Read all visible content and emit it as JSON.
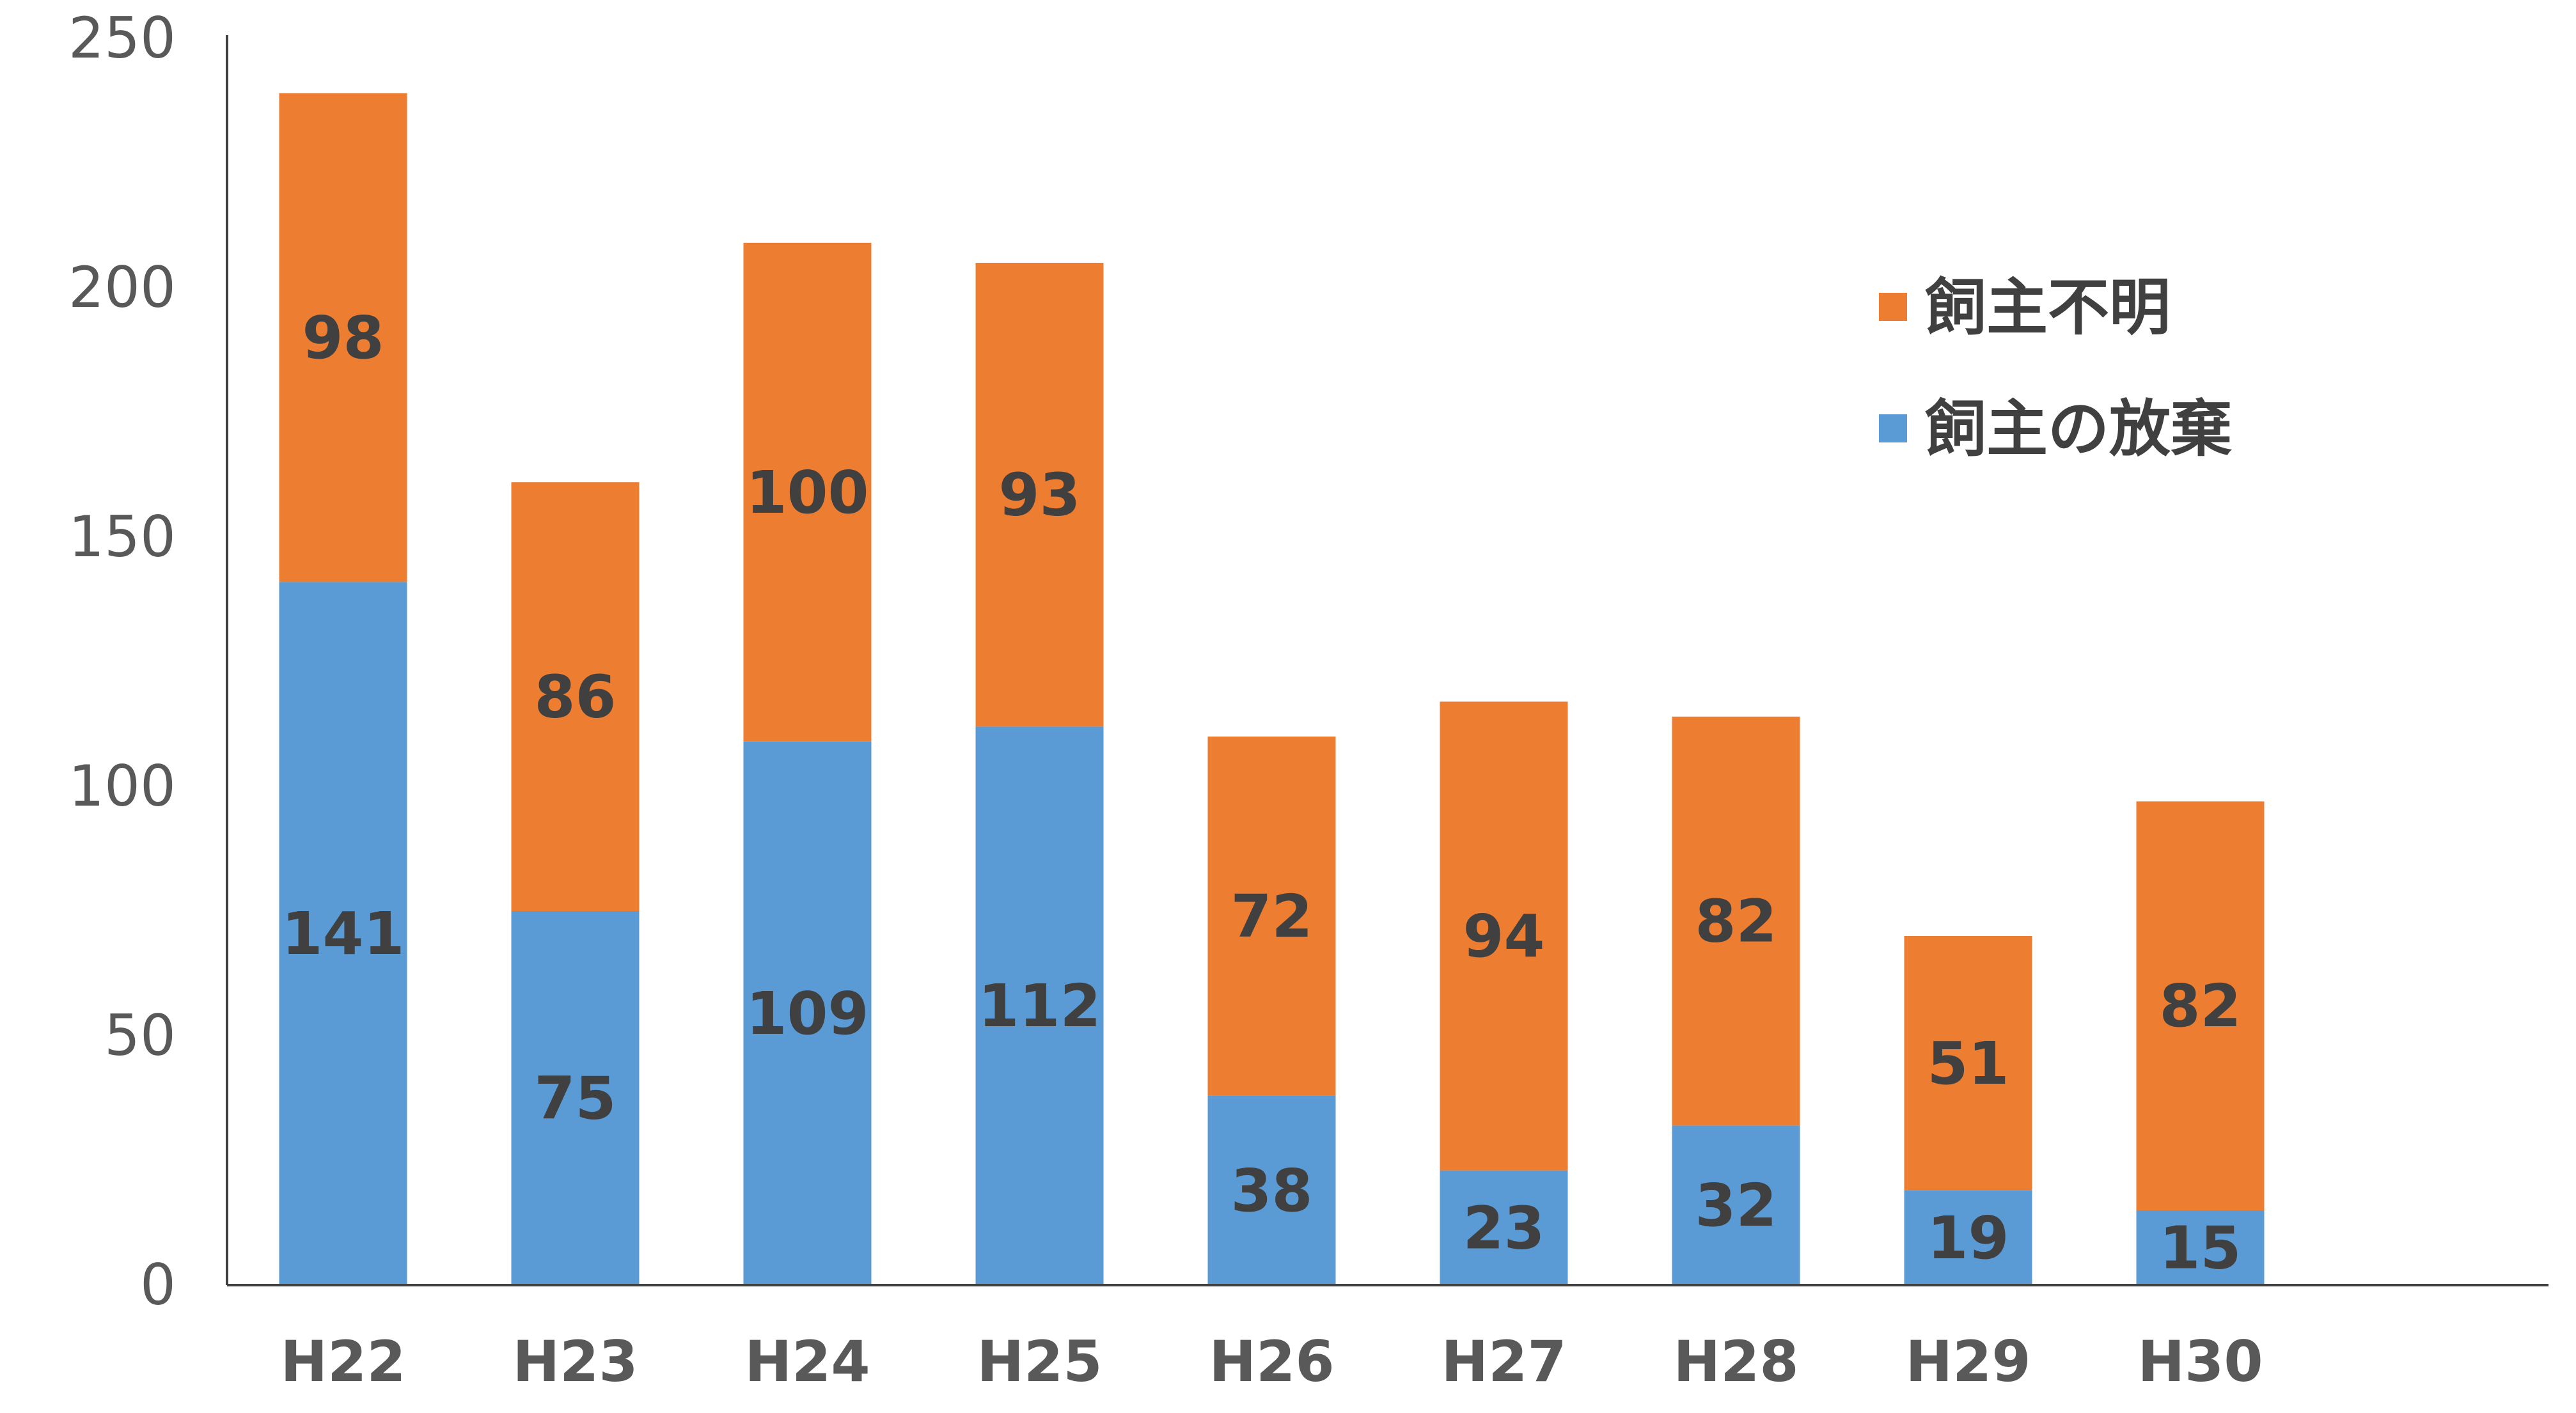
{
  "chart_data": {
    "type": "bar",
    "stacked": true,
    "title": "",
    "xlabel": "",
    "ylabel": "",
    "categories": [
      "H22",
      "H23",
      "H24",
      "H25",
      "H26",
      "H27",
      "H28",
      "H29",
      "H30"
    ],
    "series": [
      {
        "name": "飼主の放棄",
        "values": [
          141,
          75,
          109,
          112,
          38,
          23,
          32,
          19,
          15
        ],
        "color": "#5B9BD5"
      },
      {
        "name": "飼主不明",
        "values": [
          98,
          86,
          100,
          93,
          72,
          94,
          82,
          51,
          82
        ],
        "color": "#ED7D31"
      }
    ],
    "ylim": [
      0,
      250
    ],
    "yticks": [
      "0",
      "50",
      "100",
      "150",
      "200",
      "250"
    ],
    "grid": false,
    "legend": {
      "placement": "top-right",
      "order": [
        "飼主不明",
        "飼主の放棄"
      ]
    }
  }
}
